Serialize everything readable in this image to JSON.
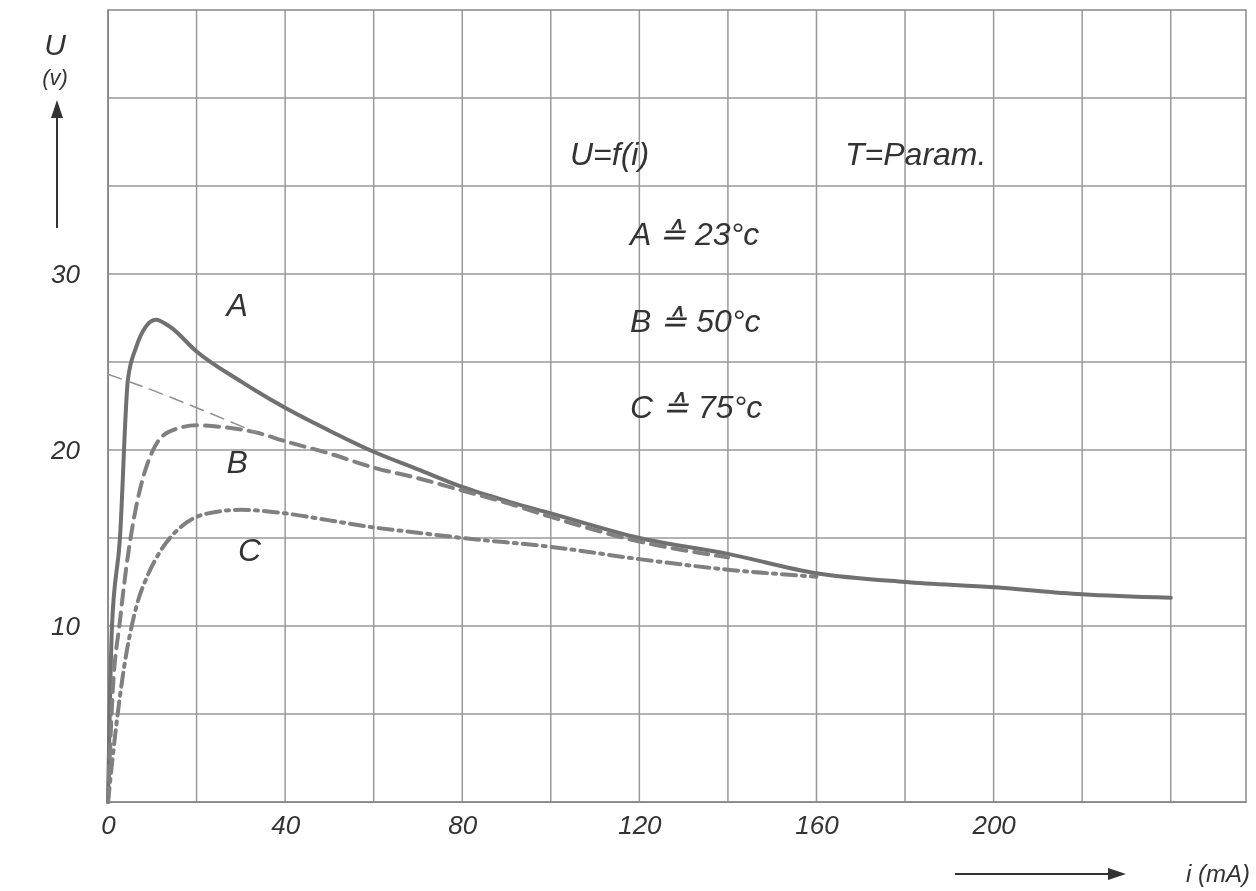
{
  "chart_data": {
    "type": "line",
    "xlabel": "i (mA)",
    "ylabel": "U (v)",
    "xlim": [
      0,
      257
    ],
    "ylim": [
      0,
      45
    ],
    "xticks": [
      0,
      {
        "value": 20,
        "label": null
      },
      40,
      {
        "value": 60,
        "label": null
      },
      80,
      {
        "value": 100,
        "label": null
      },
      120,
      {
        "value": 140,
        "label": null
      },
      160,
      {
        "value": 180,
        "label": null
      },
      200,
      {
        "value": 220,
        "label": null
      },
      {
        "value": 240,
        "label": null
      }
    ],
    "yticks": [
      {
        "value": 0,
        "label": null
      },
      {
        "value": 5,
        "label": null
      },
      10,
      {
        "value": 15,
        "label": null
      },
      20,
      {
        "value": 25,
        "label": null
      },
      30,
      {
        "value": 35,
        "label": null
      },
      {
        "value": 40,
        "label": null
      }
    ],
    "grid": true,
    "marker": "none",
    "series": [
      {
        "name": "A",
        "color": "#707070",
        "line_style": "solid",
        "x": [
          0,
          0.9,
          2.7,
          4.5,
          6.3,
          8.5,
          10.8,
          14,
          20,
          30,
          40,
          50,
          60,
          70,
          80,
          90,
          100,
          120,
          140,
          160,
          180,
          200,
          220,
          240
        ],
        "values": [
          0,
          10,
          15,
          24,
          25.8,
          27,
          27.4,
          27,
          25.6,
          23.9,
          22.4,
          21.1,
          19.9,
          18.9,
          17.9,
          17.1,
          16.4,
          15,
          14.1,
          13,
          12.5,
          12.2,
          11.8,
          11.6
        ]
      },
      {
        "name": "B",
        "color": "#808080",
        "line_style": "dashed",
        "x": [
          0,
          1,
          2.7,
          4.5,
          6.3,
          8,
          10,
          13.5,
          20,
          26,
          33.4,
          40,
          50,
          60,
          70,
          80,
          90,
          100,
          120,
          140
        ],
        "values": [
          0,
          6,
          10.3,
          14,
          16.7,
          18.5,
          19.9,
          21,
          21.4,
          21.3,
          21,
          20.5,
          19.8,
          19,
          18.4,
          17.7,
          17,
          16.2,
          14.8,
          13.9
        ]
      },
      {
        "color": "#909090",
        "line_style": "dashed",
        "x": [
          0,
          10,
          20,
          33.4
        ],
        "values": [
          24.3,
          23.4,
          22.4,
          21
        ]
      },
      {
        "name": "C",
        "color": "#808080",
        "line_style": "dotted",
        "x": [
          0,
          1.8,
          3.6,
          6.3,
          9,
          11.7,
          16.3,
          22.6,
          30,
          40,
          50,
          60,
          70,
          80,
          100,
          120,
          140,
          160
        ],
        "values": [
          0,
          4.2,
          7.6,
          11,
          12.9,
          14.2,
          15.6,
          16.4,
          16.6,
          16.4,
          16,
          15.6,
          15.3,
          15,
          14.5,
          13.8,
          13.2,
          12.8
        ]
      }
    ],
    "annotations": [
      "U=f(i)",
      "T=Param.",
      "A ≙ 23°c",
      "B ≙ 50°c",
      "C ≙ 75°c"
    ]
  }
}
